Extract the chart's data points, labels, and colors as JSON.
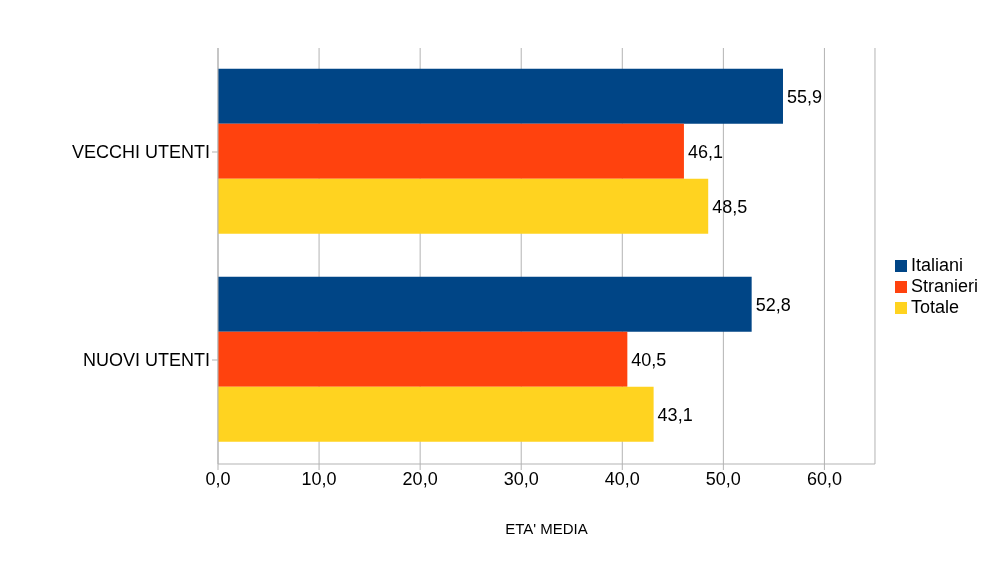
{
  "chart_data": {
    "type": "bar",
    "orientation": "horizontal",
    "xlabel": "ETA' MEDIA",
    "categories": [
      "VECCHI UTENTI",
      "NUOVI UTENTI"
    ],
    "series": [
      {
        "name": "Italiani",
        "color": "#004586",
        "values": [
          55.9,
          52.8
        ],
        "value_labels": [
          "55,9",
          "52,8"
        ]
      },
      {
        "name": "Stranieri",
        "color": "#ff420e",
        "values": [
          46.1,
          40.5
        ],
        "value_labels": [
          "46,1",
          "40,5"
        ]
      },
      {
        "name": "Totale",
        "color": "#ffd320",
        "values": [
          48.5,
          43.1
        ],
        "value_labels": [
          "48,5",
          "43,1"
        ]
      }
    ],
    "xlim": [
      0,
      65
    ],
    "xticks": [
      {
        "value": 0,
        "label": "0,0"
      },
      {
        "value": 10,
        "label": "10,0"
      },
      {
        "value": 20,
        "label": "20,0"
      },
      {
        "value": 30,
        "label": "30,0"
      },
      {
        "value": 40,
        "label": "40,0"
      },
      {
        "value": 50,
        "label": "50,0"
      },
      {
        "value": 60,
        "label": "60,0"
      }
    ],
    "grid": "x",
    "legend": "right"
  }
}
